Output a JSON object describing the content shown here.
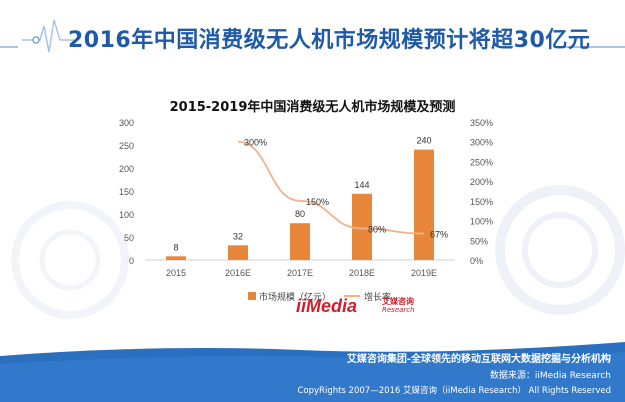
{
  "header": {
    "title": "2016年中国消费级无人机市场规模预计将超30亿元"
  },
  "chart_data": {
    "type": "bar+line",
    "title": "2015-2019年中国消费级无人机市场规模及预测",
    "categories": [
      "2015",
      "2016E",
      "2017E",
      "2018E",
      "2019E"
    ],
    "series": [
      {
        "name": "市场规模（亿元）",
        "kind": "bar",
        "axis": "left",
        "values": [
          8,
          32,
          80,
          144,
          240
        ],
        "labels": [
          "8",
          "32",
          "80",
          "144",
          "240"
        ],
        "color": "#e8873a"
      },
      {
        "name": "增长率",
        "kind": "line",
        "axis": "right",
        "values": [
          null,
          300,
          150,
          80,
          67
        ],
        "labels": [
          "",
          "300%",
          "150%",
          "80%",
          "67%"
        ],
        "color": "#f2b28a"
      }
    ],
    "y_left": {
      "min": 0,
      "max": 300,
      "ticks": [
        "0",
        "50",
        "100",
        "150",
        "200",
        "250",
        "300"
      ]
    },
    "y_right": {
      "min": 0,
      "max": 350,
      "ticks": [
        "0%",
        "50%",
        "100%",
        "150%",
        "200%",
        "250%",
        "300%",
        "350%"
      ]
    },
    "legend_position": "bottom",
    "grid": false
  },
  "logo": {
    "brand": "iiMedia",
    "cn": "艾媒咨询",
    "en": "Research"
  },
  "footer": {
    "line1": "艾媒咨询集团-全球领先的移动互联网大数据挖掘与分析机构",
    "line2": "数据来源：iiMedia Research",
    "line3": "CopyRights 2007—2016 艾媒咨询（iiMedia Research） All Rights Reserved"
  },
  "colors": {
    "title_blue": "#1f5aa8",
    "footer_blue": "#2a6fc0",
    "bar": "#e8873a",
    "line": "#f2b28a"
  }
}
